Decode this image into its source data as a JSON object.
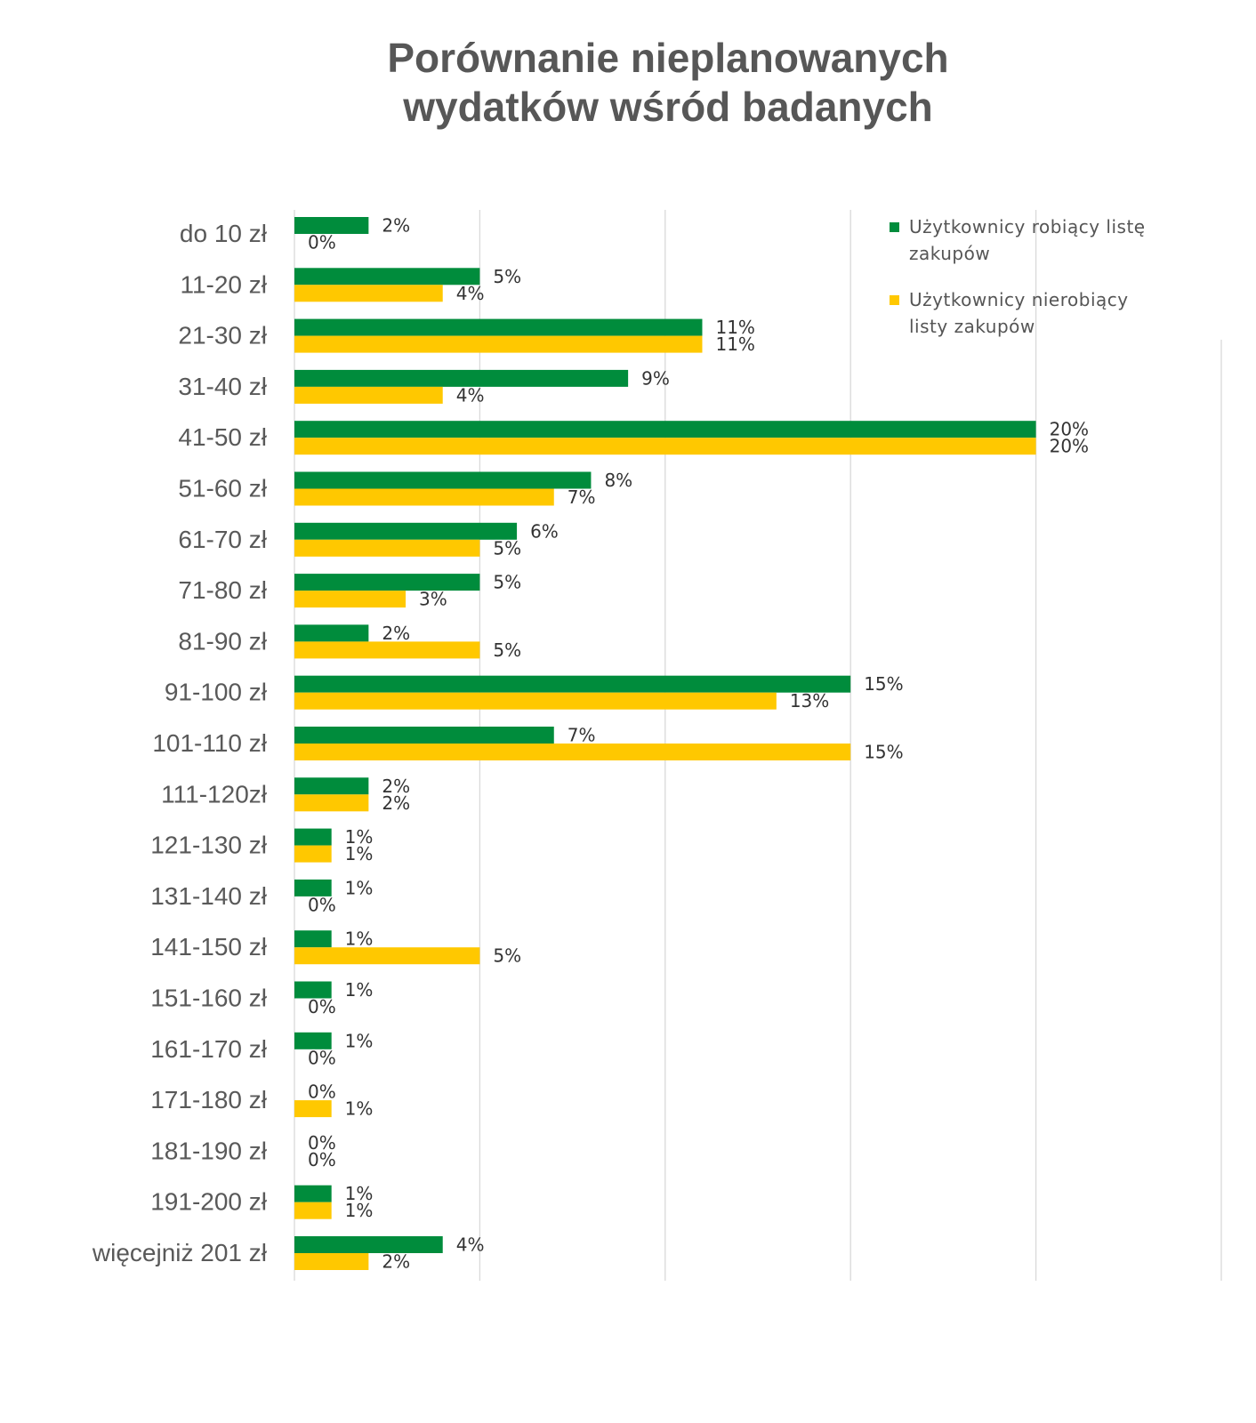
{
  "chart_data": {
    "type": "bar",
    "orientation": "horizontal",
    "title": [
      "Porównanie nieplanowanych",
      "wydatków wśród badanych"
    ],
    "categories": [
      "do 10 zł",
      "11-20 zł",
      "21-30 zł",
      "31-40 zł",
      "41-50 zł",
      "51-60 zł",
      "61-70 zł",
      "71-80 zł",
      "81-90 zł",
      "91-100 zł",
      "101-110 zł",
      "111-120zł",
      "121-130 zł",
      "131-140 zł",
      "141-150 zł",
      "151-160 zł",
      "161-170 zł",
      "171-180 zł",
      "181-190 zł",
      "191-200 zł",
      "więcejniż 201 zł"
    ],
    "series": [
      {
        "name": "Użytkownicy robiący listę zakupów",
        "color": "#008c3c",
        "values": [
          2,
          5,
          11,
          9,
          20,
          8,
          6,
          5,
          2,
          15,
          7,
          2,
          1,
          1,
          1,
          1,
          1,
          0,
          0,
          1,
          4
        ],
        "labels": [
          "2%",
          "5%",
          "11%",
          "9%",
          "20%",
          "8%",
          "6%",
          "5%",
          "2%",
          "15%",
          "7%",
          "2%",
          "1%",
          "1%",
          "1%",
          "1%",
          "1%",
          "0%",
          "0%",
          "1%",
          "4%"
        ]
      },
      {
        "name": "Użytkownicy nierobiący listy zakupów",
        "color": "#ffc800",
        "values": [
          0,
          4,
          11,
          4,
          20,
          7,
          5,
          3,
          5,
          13,
          15,
          2,
          1,
          0,
          5,
          0,
          0,
          1,
          0,
          1,
          2
        ],
        "labels": [
          "0%",
          "4%",
          "11%",
          "4%",
          "20%",
          "7%",
          "5%",
          "3%",
          "5%",
          "13%",
          "15%",
          "2%",
          "1%",
          "0%",
          "5%",
          "0%",
          "0%",
          "1%",
          "0%",
          "1%",
          "2%"
        ]
      }
    ],
    "xlim": [
      0,
      25
    ],
    "gridlines": [
      0,
      5,
      10,
      15,
      20,
      25
    ],
    "grid": true,
    "legend_position": "top-right",
    "gridline_color": "#d9d9d9",
    "label_color": "#333333",
    "category_color": "#595959"
  }
}
